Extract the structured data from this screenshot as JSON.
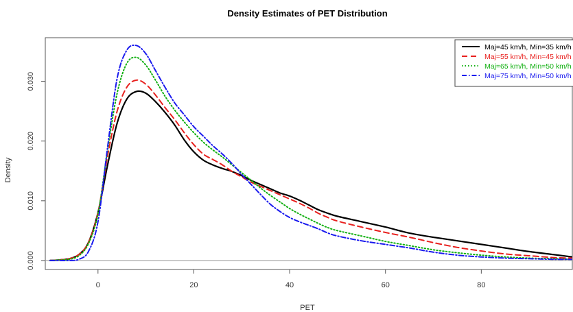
{
  "chart_data": {
    "type": "line",
    "title": "Density Estimates of PET Distribution",
    "xlabel": "PET",
    "ylabel": "Density",
    "xlim": [
      -11,
      99
    ],
    "ylim": [
      -0.0015,
      0.0373
    ],
    "x_ticks": [
      0,
      20,
      40,
      60,
      80
    ],
    "x_tick_labels": [
      "0",
      "20",
      "40",
      "60",
      "80"
    ],
    "y_ticks": [
      0.0,
      0.01,
      0.02,
      0.03
    ],
    "y_tick_labels": [
      "0.000",
      "0.010",
      "0.020",
      "0.030"
    ],
    "grid": false,
    "legend_position": "top-right",
    "series": [
      {
        "name": "Maj=45 km/h, Min=35 km/h",
        "color": "#000000",
        "dash": "solid",
        "x": [
          -10,
          -8,
          -6,
          -4,
          -2,
          0,
          2,
          4,
          6,
          8,
          10,
          12,
          14,
          16,
          18,
          20,
          22,
          24,
          26,
          28,
          30,
          32,
          34,
          36,
          38,
          40,
          42,
          44,
          46,
          48,
          50,
          55,
          60,
          65,
          70,
          75,
          80,
          85,
          90,
          95,
          99
        ],
        "y": [
          0.0,
          0.0001,
          0.0003,
          0.001,
          0.003,
          0.008,
          0.016,
          0.023,
          0.027,
          0.0283,
          0.028,
          0.0266,
          0.0248,
          0.0227,
          0.0202,
          0.0182,
          0.0168,
          0.016,
          0.0154,
          0.0149,
          0.0142,
          0.0134,
          0.0127,
          0.012,
          0.0113,
          0.0108,
          0.0101,
          0.0093,
          0.0085,
          0.0079,
          0.0074,
          0.0065,
          0.0056,
          0.0046,
          0.0039,
          0.0033,
          0.0027,
          0.0021,
          0.0015,
          0.001,
          0.0006
        ]
      },
      {
        "name": "Maj=55 km/h, Min=45 km/h",
        "color": "#e8201e",
        "dash": "dashed",
        "x": [
          -10,
          -8,
          -6,
          -4,
          -2,
          0,
          2,
          4,
          6,
          8,
          10,
          12,
          14,
          16,
          18,
          20,
          22,
          24,
          26,
          28,
          30,
          32,
          34,
          36,
          38,
          40,
          42,
          44,
          46,
          48,
          50,
          55,
          60,
          65,
          70,
          75,
          80,
          85,
          90,
          95,
          99
        ],
        "y": [
          0.0,
          0.0001,
          0.0003,
          0.001,
          0.003,
          0.008,
          0.0175,
          0.025,
          0.029,
          0.0302,
          0.0295,
          0.0277,
          0.0256,
          0.0236,
          0.0214,
          0.0194,
          0.0178,
          0.0169,
          0.016,
          0.0149,
          0.014,
          0.0131,
          0.0124,
          0.0117,
          0.011,
          0.0103,
          0.0096,
          0.0088,
          0.0079,
          0.0072,
          0.0066,
          0.0056,
          0.0047,
          0.0039,
          0.003,
          0.0022,
          0.0016,
          0.0011,
          0.0008,
          0.0005,
          0.0004
        ]
      },
      {
        "name": "Maj=65 km/h, Min=50 km/h",
        "color": "#12b012",
        "dash": "dotted",
        "x": [
          -10,
          -8,
          -6,
          -4,
          -2,
          0,
          2,
          4,
          6,
          8,
          10,
          12,
          14,
          16,
          18,
          20,
          22,
          24,
          26,
          28,
          30,
          32,
          34,
          36,
          38,
          40,
          42,
          44,
          46,
          48,
          50,
          55,
          60,
          65,
          70,
          75,
          80,
          85,
          90,
          95,
          99
        ],
        "y": [
          0.0,
          0.0001,
          0.0002,
          0.0008,
          0.0028,
          0.0078,
          0.0185,
          0.028,
          0.033,
          0.034,
          0.0327,
          0.0302,
          0.0275,
          0.0252,
          0.0232,
          0.0214,
          0.0198,
          0.0185,
          0.0173,
          0.016,
          0.0147,
          0.0134,
          0.0121,
          0.0109,
          0.0098,
          0.0087,
          0.0078,
          0.007,
          0.0062,
          0.0055,
          0.005,
          0.0041,
          0.0032,
          0.0025,
          0.0018,
          0.0013,
          0.0009,
          0.0006,
          0.0004,
          0.0003,
          0.0002
        ]
      },
      {
        "name": "Maj=75 km/h, Min=50 km/h",
        "color": "#1a1aee",
        "dash": "dotdash",
        "x": [
          -10,
          -8,
          -6,
          -4,
          -2,
          0,
          2,
          4,
          6,
          8,
          10,
          12,
          14,
          16,
          18,
          20,
          22,
          24,
          26,
          28,
          30,
          32,
          34,
          36,
          38,
          40,
          42,
          44,
          46,
          48,
          50,
          55,
          60,
          65,
          70,
          75,
          80,
          85,
          90,
          95,
          99
        ],
        "y": [
          0.0,
          0.0,
          0.0,
          0.0002,
          0.0015,
          0.0065,
          0.019,
          0.0305,
          0.0352,
          0.036,
          0.0346,
          0.0318,
          0.029,
          0.0264,
          0.0244,
          0.0224,
          0.0208,
          0.0192,
          0.0178,
          0.0162,
          0.0144,
          0.0127,
          0.011,
          0.0094,
          0.0082,
          0.0072,
          0.0065,
          0.0059,
          0.0053,
          0.0046,
          0.0041,
          0.0033,
          0.0027,
          0.0021,
          0.0014,
          0.0009,
          0.0006,
          0.0004,
          0.0003,
          0.0002,
          0.0002
        ]
      }
    ]
  }
}
